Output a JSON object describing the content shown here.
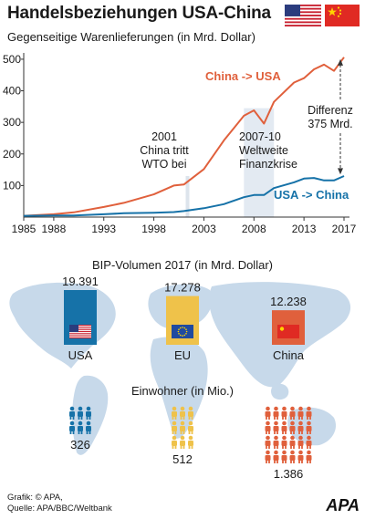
{
  "header": {
    "title": "Handelsbeziehungen USA-China",
    "subtitle": "Gegenseitige  Warenlieferungen (in Mrd. Dollar)"
  },
  "flags": {
    "usa": "USA",
    "china": "China"
  },
  "chart_data": {
    "type": "line",
    "x": [
      1985,
      1988,
      1990,
      1993,
      1995,
      1998,
      2000,
      2001,
      2003,
      2005,
      2007,
      2008,
      2009,
      2010,
      2012,
      2013,
      2014,
      2015,
      2016,
      2017
    ],
    "series": [
      {
        "name": "China -> USA",
        "values": [
          4,
          9,
          15,
          32,
          45,
          72,
          100,
          103,
          152,
          243,
          321,
          338,
          296,
          365,
          426,
          440,
          468,
          483,
          463,
          506
        ],
        "color": "#e0603c"
      },
      {
        "name": "USA -> China",
        "values": [
          4,
          5,
          5,
          9,
          12,
          14,
          16,
          19,
          28,
          41,
          63,
          70,
          70,
          92,
          110,
          122,
          124,
          116,
          116,
          130
        ],
        "color": "#1672a8"
      }
    ],
    "xticks": [
      "1985",
      "1988",
      "1993",
      "1998",
      "2003",
      "2008",
      "2013",
      "2017"
    ],
    "yticks": [
      "100",
      "200",
      "300",
      "400",
      "500"
    ],
    "xlim": [
      1985,
      2017
    ],
    "ylim": [
      0,
      520
    ],
    "grid": false,
    "annotations": {
      "wto": {
        "year": 2001,
        "lines": [
          "2001",
          "China tritt",
          "WTO bei"
        ]
      },
      "crisis": {
        "from": 2007,
        "to": 2010,
        "lines": [
          "2007-10",
          "Weltweite",
          "Finanzkrise"
        ]
      },
      "difference": {
        "lines": [
          "Differenz",
          "375 Mrd."
        ]
      }
    }
  },
  "bip": {
    "title": "BIP-Volumen 2017 (in Mrd. Dollar)",
    "regions": [
      {
        "label": "USA",
        "value": "19.391",
        "gdp": 19391,
        "color": "#1672a8"
      },
      {
        "label": "EU",
        "value": "17.278",
        "gdp": 17278,
        "color": "#efc24a"
      },
      {
        "label": "China",
        "value": "12.238",
        "gdp": 12238,
        "color": "#e0603c"
      }
    ]
  },
  "population": {
    "title": "Einwohner (in Mio.)",
    "regions": [
      {
        "value": "326",
        "persons": 6,
        "color": "#1672a8"
      },
      {
        "value": "512",
        "persons": 9,
        "color": "#efc24a"
      },
      {
        "value": "1.386",
        "persons": 24,
        "color": "#e0603c"
      }
    ]
  },
  "footer": {
    "credit_line1": "Grafik: © APA,",
    "credit_line2": "Quelle: APA/BBC/Weltbank",
    "logo": "APA"
  }
}
